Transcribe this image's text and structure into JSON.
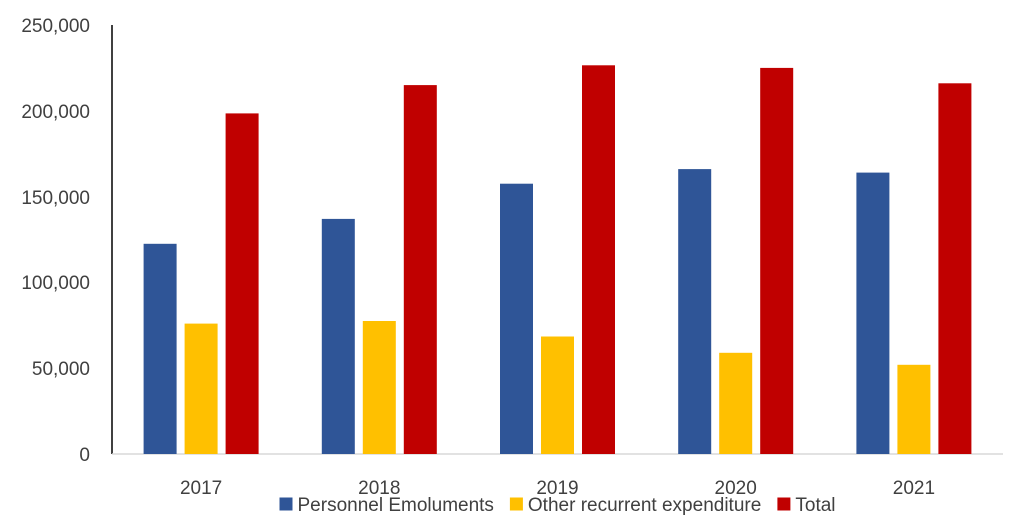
{
  "chart_data": {
    "type": "bar",
    "categories": [
      "2017",
      "2018",
      "2019",
      "2020",
      "2021"
    ],
    "series": [
      {
        "name": "Personnel Emoluments",
        "color": "#2F5597",
        "values": [
          122500,
          137000,
          157500,
          166000,
          164000
        ]
      },
      {
        "name": "Other recurrent expenditure",
        "color": "#FFC000",
        "values": [
          76000,
          77500,
          68500,
          59000,
          52000
        ]
      },
      {
        "name": "Total",
        "color": "#C00000",
        "values": [
          198500,
          215000,
          226500,
          225000,
          216000
        ]
      }
    ],
    "y_ticks": [
      "0",
      "50,000",
      "100,000",
      "150,000",
      "200,000",
      "250,000"
    ],
    "ylim": [
      0,
      250000
    ],
    "grid": false,
    "legend_position": "bottom"
  }
}
